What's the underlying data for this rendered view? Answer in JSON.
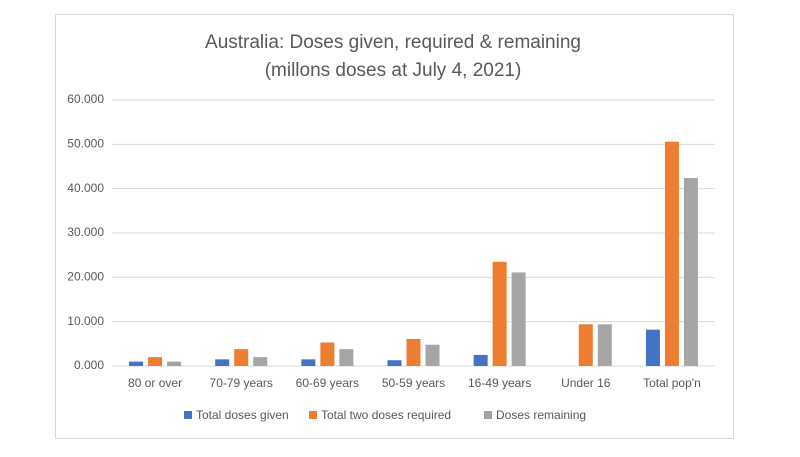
{
  "chart_data": {
    "type": "bar",
    "title": "Australia: Doses given, required & remaining",
    "subtitle": "(millons doses at July 4, 2021)",
    "categories": [
      "80 or over",
      "70-79 years",
      "60-69 years",
      "50-59 years",
      "16-49 years",
      "Under 16",
      "Total pop'n"
    ],
    "series": [
      {
        "name": "Total doses given",
        "color": "#4472c4",
        "values": [
          1.0,
          1.5,
          1.5,
          1.3,
          2.5,
          0,
          8.2
        ]
      },
      {
        "name": "Total two doses required",
        "color": "#ed7d31",
        "values": [
          2.0,
          3.8,
          5.3,
          6.1,
          23.5,
          9.4,
          50.6
        ]
      },
      {
        "name": "Doses remaining",
        "color": "#a5a5a5",
        "values": [
          1.0,
          2.0,
          3.8,
          4.8,
          21.1,
          9.4,
          42.4
        ]
      }
    ],
    "ylim": [
      0,
      60
    ],
    "yticks": [
      {
        "value": 0,
        "label": "0.000"
      },
      {
        "value": 10,
        "label": "10.000"
      },
      {
        "value": 20,
        "label": "20.000"
      },
      {
        "value": 30,
        "label": "30.000"
      },
      {
        "value": 40,
        "label": "40.000"
      },
      {
        "value": 50,
        "label": "50.000"
      },
      {
        "value": 60,
        "label": "60.000"
      }
    ],
    "grid": true,
    "legend": "bottom"
  }
}
